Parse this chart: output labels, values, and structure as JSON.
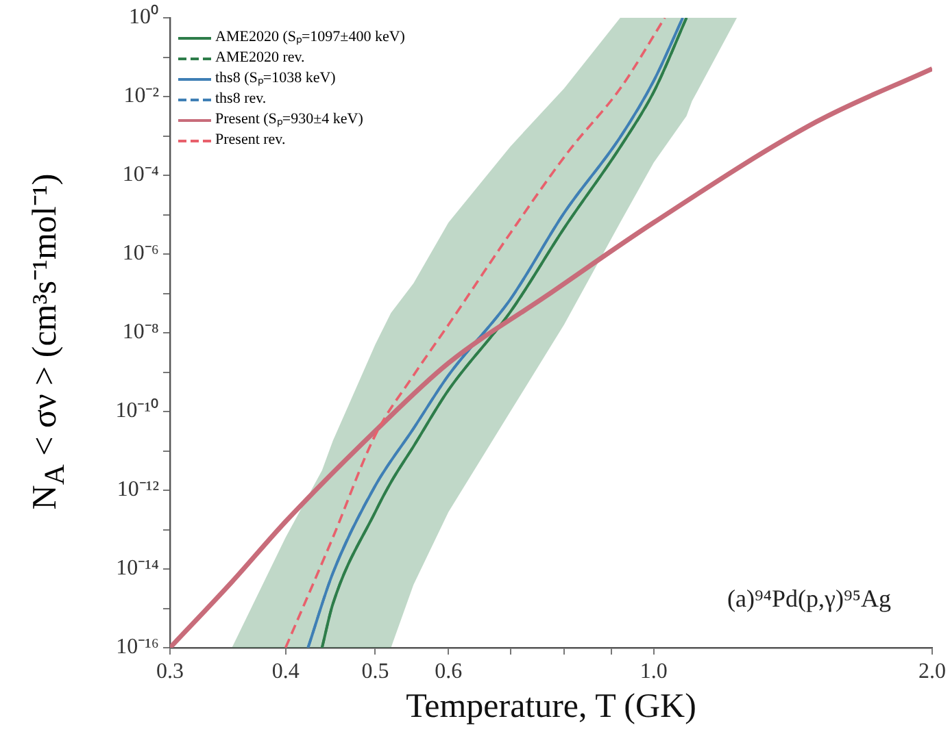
{
  "chart_data": {
    "type": "line",
    "xlabel": "Temperature, T (GK)",
    "ylabel": "N$_{A}$ < σν > (cm³s⁻¹mol⁻¹)",
    "log": "xy",
    "grid": false,
    "legend": "top left",
    "xlim": [
      0.3,
      2.0
    ],
    "ylim": [
      1e-16,
      1
    ],
    "xticks": [
      0.3,
      0.4,
      0.5,
      0.6,
      {
        "value": 0.7,
        "label": null
      },
      {
        "value": 0.8,
        "label": null
      },
      {
        "value": 0.9,
        "label": null
      },
      {
        "value": 1.0,
        "label": "1.0"
      },
      {
        "value": 2.0,
        "label": "2.0"
      }
    ],
    "yticks": [
      {
        "value": 1e-16,
        "label": "10⁻¹⁶"
      },
      {
        "value": 1e-15,
        "label": null
      },
      {
        "value": 1e-14,
        "label": "10⁻¹⁴"
      },
      {
        "value": 1e-13,
        "label": null
      },
      {
        "value": 1e-12,
        "label": "10⁻¹²"
      },
      {
        "value": 1e-11,
        "label": null
      },
      {
        "value": 1e-10,
        "label": "10⁻¹⁰"
      },
      {
        "value": 1e-09,
        "label": null
      },
      {
        "value": 1e-08,
        "label": "10⁻⁸"
      },
      {
        "value": 1e-07,
        "label": null
      },
      {
        "value": 1e-06,
        "label": "10⁻⁶"
      },
      {
        "value": 1e-05,
        "label": null
      },
      {
        "value": 0.0001,
        "label": "10⁻⁴"
      },
      {
        "value": 0.001,
        "label": null
      },
      {
        "value": 0.01,
        "label": "10⁻²"
      },
      {
        "value": 0.1,
        "label": null
      },
      {
        "value": 1,
        "label": "10⁰"
      }
    ],
    "annotations": [
      "(a)⁹⁴Pd(p,γ)⁹⁵Ag"
    ],
    "series": [
      {
        "name": "AME2020 (Sₚ=1097±400 keV)",
        "color": "#2e7d4a",
        "line_style": "solid",
        "x": [
          0.35,
          0.4,
          0.438,
          0.45,
          0.5,
          0.52,
          0.55,
          0.6,
          0.7,
          0.8,
          0.92,
          1.0,
          1.085,
          1.1,
          1.23
        ],
        "values": [
          null,
          null,
          1e-16,
          1.3e-15,
          2.8e-13,
          1.6e-12,
          1.3e-11,
          3.5e-10,
          3.4e-08,
          4.5e-06,
          0.00052,
          0.013,
          1,
          null,
          null
        ],
        "upper": [
          1e-16,
          6.3e-14,
          3.2e-12,
          1.8e-11,
          5e-09,
          3.2e-08,
          1.8e-07,
          6.3e-06,
          0.00054,
          0.016,
          1,
          1,
          1,
          1,
          1
        ],
        "lower": [
          1e-16,
          1e-16,
          1e-16,
          1e-16,
          1e-16,
          1e-16,
          4e-15,
          2.8e-13,
          1e-10,
          1.6e-08,
          6.3e-06,
          0.00021,
          0.0032,
          0.0076,
          1
        ]
      },
      {
        "name": "AME2020 rev.",
        "color": "#2e7d4a",
        "line_style": "dashed",
        "x": [
          0.438,
          0.45,
          0.5,
          0.52,
          0.55,
          0.6,
          0.7,
          0.8,
          0.92,
          1.0,
          1.085
        ],
        "values": [
          1e-16,
          1.3e-15,
          2.8e-13,
          1.6e-12,
          1.3e-11,
          3.5e-10,
          3.4e-08,
          4.5e-06,
          0.00052,
          0.013,
          1
        ]
      },
      {
        "name": "ths8 (Sₚ=1038 keV)",
        "color": "#3f7fb5",
        "line_style": "solid",
        "x": [
          0.423,
          0.45,
          0.5,
          0.55,
          0.6,
          0.7,
          0.8,
          0.92,
          1.0,
          1.075
        ],
        "values": [
          1e-16,
          7.9e-15,
          1.3e-12,
          3.7e-11,
          8.3e-10,
          7.1e-08,
          1.1e-05,
          0.00093,
          0.025,
          1
        ]
      },
      {
        "name": "ths8 rev.",
        "color": "#3f7fb5",
        "line_style": "dashed",
        "x": [
          0.423,
          0.45,
          0.5,
          0.55,
          0.6,
          0.7,
          0.8,
          0.92,
          1.0,
          1.075
        ],
        "values": [
          1e-16,
          7.9e-15,
          1.3e-12,
          3.7e-11,
          8.3e-10,
          7.1e-08,
          1.1e-05,
          0.00093,
          0.025,
          1
        ]
      },
      {
        "name": "Present (Sₚ=930±4 keV)",
        "color": "#c86c7a",
        "line_style": "solid",
        "x": [
          0.3,
          0.35,
          0.4,
          0.5,
          0.6,
          0.766,
          1.0,
          1.5,
          2.0
        ],
        "values": [
          1e-16,
          4.7e-15,
          1.6e-13,
          3.2e-11,
          1.7e-09,
          8.7e-08,
          6.3e-06,
          0.0023,
          0.051
        ]
      },
      {
        "name": "Present rev.",
        "color": "#e8606c",
        "line_style": "dashed",
        "x": [
          0.4,
          0.45,
          0.5,
          0.55,
          0.6,
          0.7,
          0.808,
          0.92,
          1.028
        ],
        "values": [
          1e-16,
          6.3e-14,
          2.5e-11,
          8.3e-10,
          1.6e-08,
          3.4e-06,
          0.00039,
          0.016,
          1
        ]
      }
    ]
  }
}
